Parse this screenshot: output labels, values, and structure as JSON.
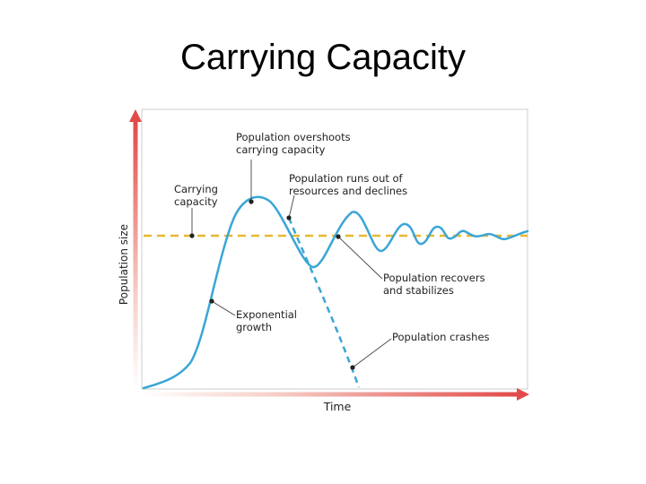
{
  "slide": {
    "title": "Carrying Capacity"
  },
  "diagram": {
    "axes": {
      "y_label": "Population size",
      "x_label": "Time"
    },
    "annotations": {
      "carrying_capacity": [
        "Carrying",
        "capacity"
      ],
      "overshoot": [
        "Population overshoots",
        "carrying capacity"
      ],
      "runs_out": [
        "Population runs out of",
        "resources and declines"
      ],
      "recovers": [
        "Population recovers",
        "and stabilizes"
      ],
      "exponential": [
        "Exponential",
        "growth"
      ],
      "crashes": [
        "Population crashes"
      ]
    },
    "colors": {
      "curve": "#3aa6d6",
      "carrying_capacity_line": "#e8b830",
      "axis_arrow": "#e05050",
      "frame": "#cccccc",
      "marker": "#222222"
    }
  }
}
